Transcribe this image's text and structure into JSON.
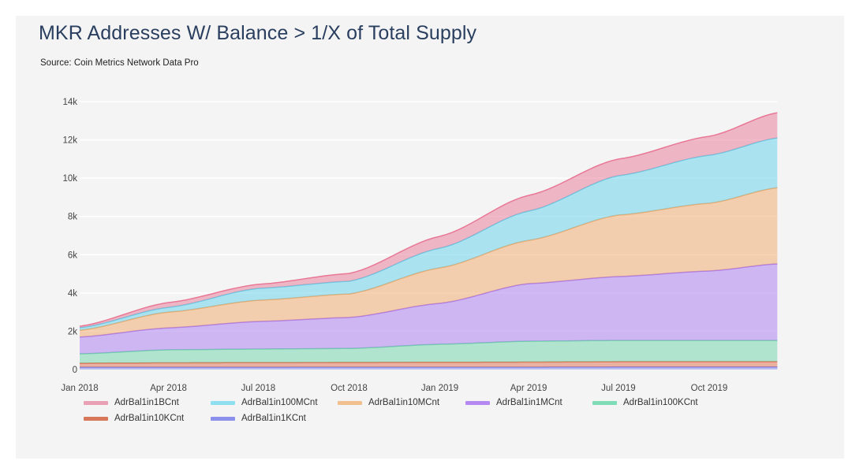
{
  "chart_data": {
    "type": "area",
    "stacked": true,
    "title": "MKR Addresses W/ Balance > 1/X of Total Supply",
    "subtitle": "Source: Coin Metrics Network Data Pro",
    "xlabel": "",
    "ylabel": "",
    "x": [
      "2018-01-01",
      "2018-04-01",
      "2018-07-01",
      "2018-10-01",
      "2019-01-01",
      "2019-04-01",
      "2019-07-01",
      "2019-10-01",
      "2019-12-09"
    ],
    "x_range": [
      "2018-01-01",
      "2019-12-09"
    ],
    "x_ticks": [
      {
        "date": "2018-01-01",
        "label": "Jan 2018"
      },
      {
        "date": "2018-04-01",
        "label": "Apr 2018"
      },
      {
        "date": "2018-07-01",
        "label": "Jul 2018"
      },
      {
        "date": "2018-10-01",
        "label": "Oct 2018"
      },
      {
        "date": "2019-01-01",
        "label": "Jan 2019"
      },
      {
        "date": "2019-04-01",
        "label": "Apr 2019"
      },
      {
        "date": "2019-07-01",
        "label": "Jul 2019"
      },
      {
        "date": "2019-10-01",
        "label": "Oct 2019"
      }
    ],
    "ylim": [
      0,
      14000
    ],
    "y_ticks": [
      {
        "value": 0,
        "label": "0"
      },
      {
        "value": 2000,
        "label": "2k"
      },
      {
        "value": 4000,
        "label": "4k"
      },
      {
        "value": 6000,
        "label": "6k"
      },
      {
        "value": 8000,
        "label": "8k"
      },
      {
        "value": 10000,
        "label": "10k"
      },
      {
        "value": 12000,
        "label": "12k"
      },
      {
        "value": 14000,
        "label": "14k"
      }
    ],
    "grid": true,
    "legend_position": "bottom",
    "series": [
      {
        "name": "AdrBal1in1KCnt",
        "color": "#7b84ec",
        "values": [
          120,
          120,
          120,
          125,
          125,
          125,
          130,
          130,
          130
        ]
      },
      {
        "name": "AdrBal1in10KCnt",
        "color": "#e06c4c",
        "values": [
          210,
          230,
          240,
          245,
          255,
          265,
          280,
          280,
          280
        ]
      },
      {
        "name": "AdrBal1in100KCnt",
        "color": "#6cd4a8",
        "values": [
          490,
          680,
          710,
          730,
          940,
          1090,
          1110,
          1110,
          1110
        ]
      },
      {
        "name": "AdrBal1in1MCnt",
        "color": "#a877f0",
        "values": [
          880,
          1150,
          1440,
          1620,
          2140,
          3010,
          3340,
          3630,
          4000
        ]
      },
      {
        "name": "AdrBal1in10MCnt",
        "color": "#f0a868",
        "values": [
          350,
          820,
          1110,
          1230,
          1850,
          2260,
          3210,
          3540,
          3980
        ]
      },
      {
        "name": "AdrBal1in100MCnt",
        "color": "#62d0ea",
        "values": [
          130,
          250,
          620,
          660,
          1030,
          1530,
          2060,
          2510,
          2600
        ]
      },
      {
        "name": "AdrBal1in1BCnt",
        "color": "#e87896",
        "values": [
          80,
          250,
          210,
          410,
          620,
          820,
          870,
          990,
          1320
        ]
      }
    ]
  },
  "legend": {
    "items": [
      {
        "name": "AdrBal1in1BCnt",
        "color": "#e8a0b4"
      },
      {
        "name": "AdrBal1in100MCnt",
        "color": "#8ee0f0"
      },
      {
        "name": "AdrBal1in10MCnt",
        "color": "#f2c08e"
      },
      {
        "name": "AdrBal1in1MCnt",
        "color": "#b48af2"
      },
      {
        "name": "AdrBal1in100KCnt",
        "color": "#7fdcb6"
      },
      {
        "name": "AdrBal1in10KCnt",
        "color": "#d8785a"
      },
      {
        "name": "AdrBal1in1KCnt",
        "color": "#8a90ec"
      }
    ]
  }
}
